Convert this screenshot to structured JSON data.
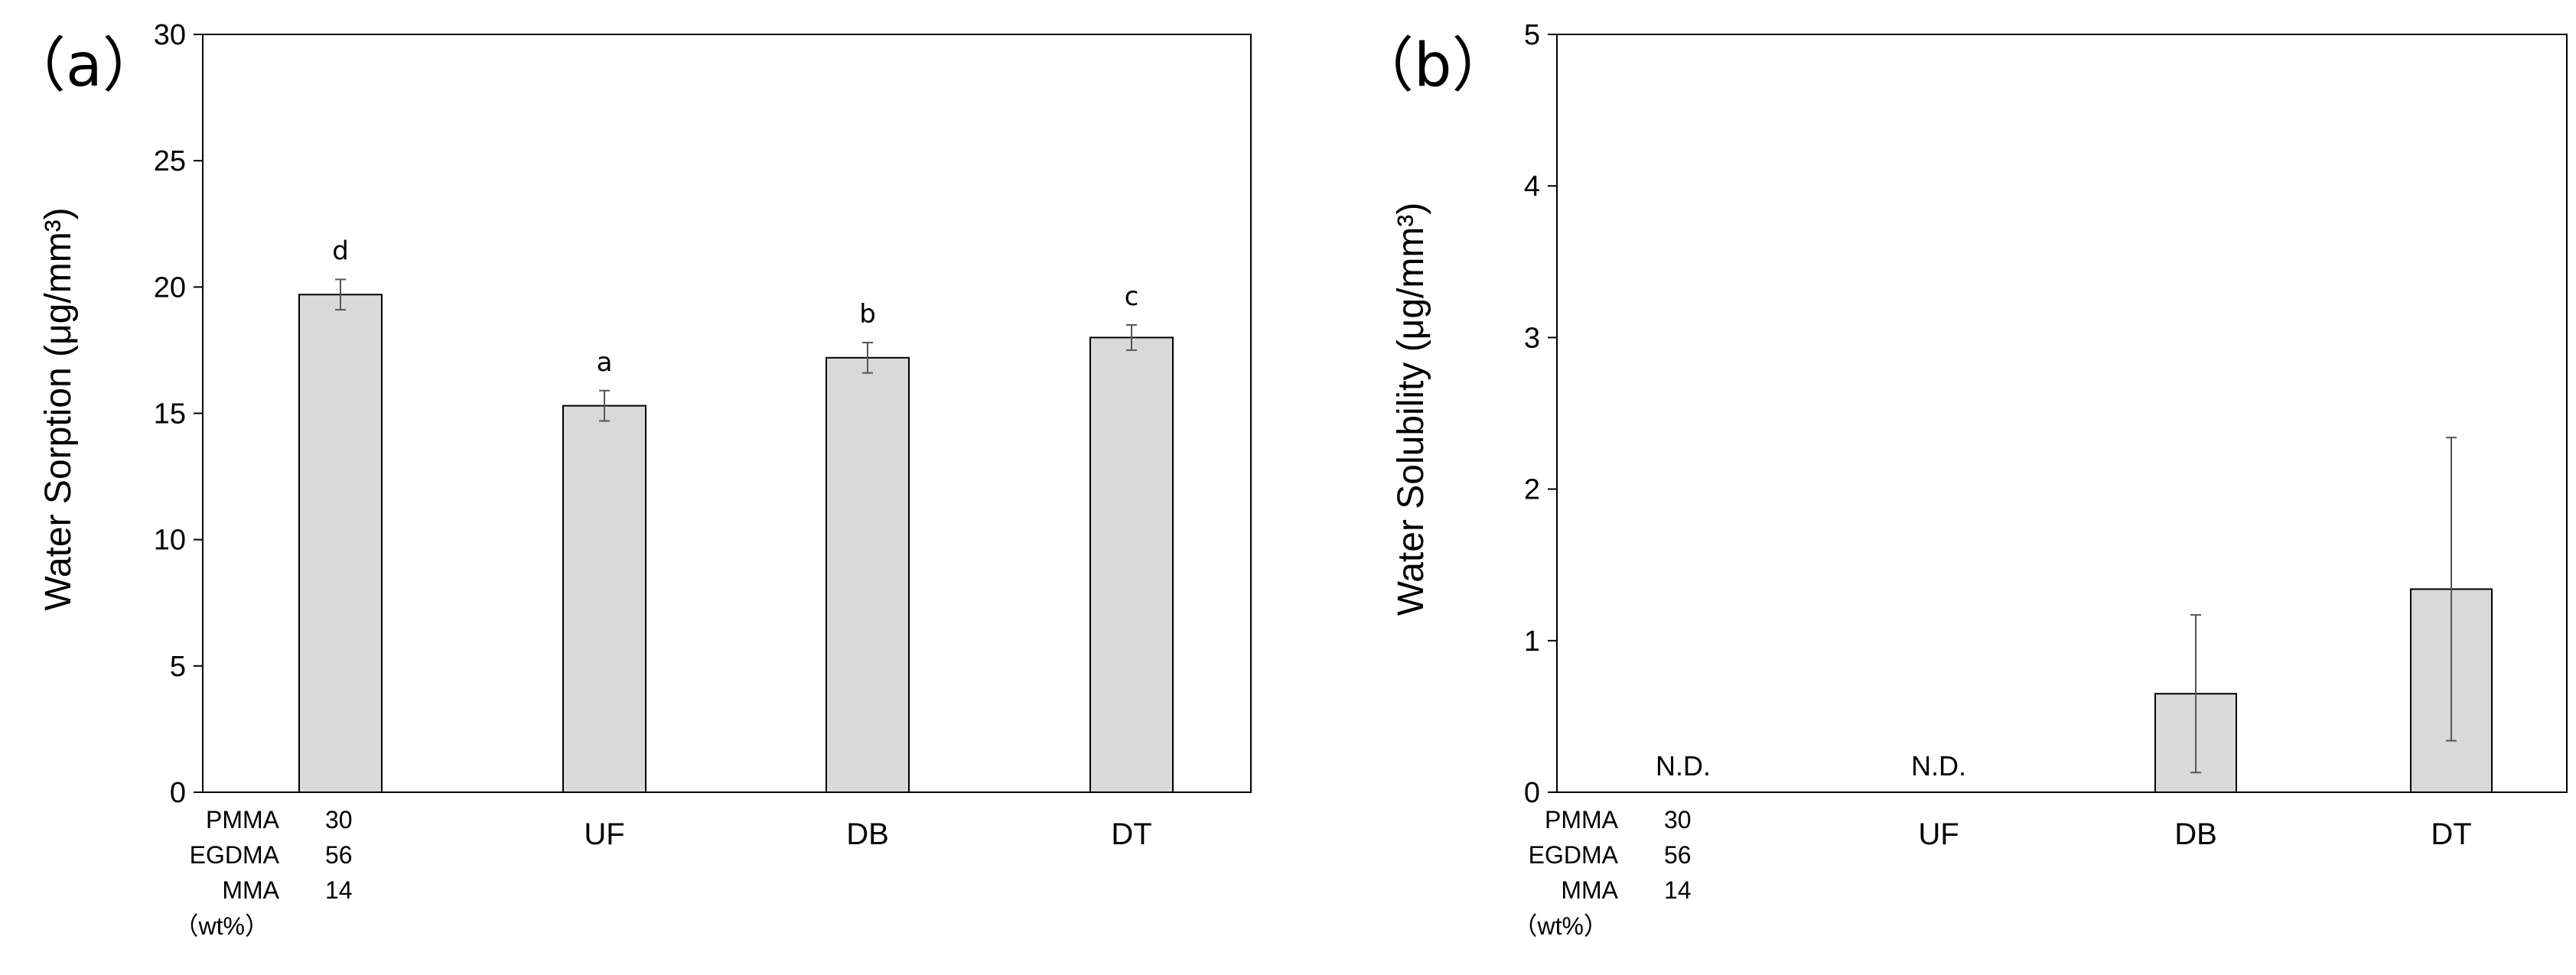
{
  "chart_data": [
    {
      "type": "bar",
      "panel_label": "（a）",
      "title": "",
      "ylabel": "Water Sorption (μg/mm³)",
      "xlabel": "",
      "ylim": [
        0,
        30
      ],
      "yticks": [
        0,
        5,
        10,
        15,
        20,
        25,
        30
      ],
      "grid": false,
      "categories": [
        "",
        "UF",
        "DB",
        "DT"
      ],
      "values": [
        19.7,
        15.3,
        17.2,
        18.0
      ],
      "errors": [
        0.6,
        0.6,
        0.6,
        0.5
      ],
      "bar_labels": [
        "d",
        "a",
        "b",
        "c"
      ],
      "bar_color": "#d9d9d9",
      "composition": {
        "rows": [
          {
            "name": "PMMA",
            "value": "30"
          },
          {
            "name": "EGDMA",
            "value": "56"
          },
          {
            "name": "MMA",
            "value": "14"
          }
        ],
        "unit": "（wt%）"
      }
    },
    {
      "type": "bar",
      "panel_label": "（b）",
      "title": "",
      "ylabel": "Water Solubility (μg/mm³)",
      "xlabel": "",
      "ylim": [
        0,
        5
      ],
      "yticks": [
        0,
        1,
        2,
        3,
        4,
        5
      ],
      "grid": false,
      "categories": [
        "",
        "UF",
        "DB",
        "DT"
      ],
      "values": [
        0,
        0,
        0.65,
        1.34
      ],
      "errors": [
        0,
        0,
        0.52,
        1.0
      ],
      "bar_labels": [
        "N.D.",
        "N.D.",
        "",
        ""
      ],
      "bar_color": "#d9d9d9",
      "composition": {
        "rows": [
          {
            "name": "PMMA",
            "value": "30"
          },
          {
            "name": "EGDMA",
            "value": "56"
          },
          {
            "name": "MMA",
            "value": "14"
          }
        ],
        "unit": "（wt%）"
      }
    }
  ]
}
